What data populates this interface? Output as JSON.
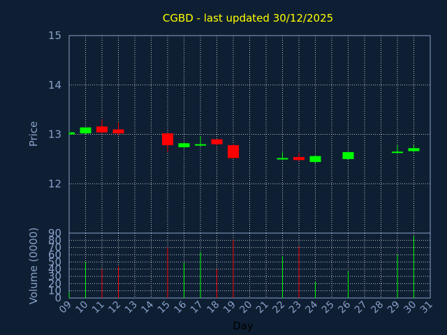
{
  "chart_data": {
    "type": "candlestick",
    "title": "CGBD - last updated 30/12/2025",
    "ylabel_price": "Price",
    "ylabel_volume": "Volume (0000)",
    "xlabel": "Day",
    "price_ylim": [
      11.0,
      15.0
    ],
    "price_ticks": [
      "12",
      "13",
      "14",
      "15"
    ],
    "price_tick_values": [
      12,
      13,
      14,
      15
    ],
    "volume_ylim": [
      0,
      90
    ],
    "volume_ticks": [
      "0",
      "10",
      "20",
      "30",
      "40",
      "50",
      "60",
      "70",
      "80",
      "90"
    ],
    "volume_tick_values": [
      0,
      10,
      20,
      30,
      40,
      50,
      60,
      70,
      80,
      90
    ],
    "x_ticks": [
      "09",
      "10",
      "11",
      "12",
      "13",
      "14",
      "15",
      "16",
      "17",
      "18",
      "19",
      "20",
      "21",
      "22",
      "23",
      "24",
      "25",
      "26",
      "27",
      "28",
      "29",
      "30",
      "31"
    ],
    "grid": true,
    "colors": {
      "up": "#00ff00",
      "down": "#ff0000",
      "grid": "#c0c0c0",
      "axis": "#8aa0c8",
      "title": "#ffff00",
      "background": "#0e1f33"
    },
    "candles": [
      {
        "day": "09",
        "open": 13.0,
        "high": 13.05,
        "low": 12.99,
        "close": 13.04,
        "volume": 8
      },
      {
        "day": "10",
        "open": 13.02,
        "high": 13.14,
        "low": 13.0,
        "close": 13.14,
        "volume": 50
      },
      {
        "day": "11",
        "open": 13.16,
        "high": 13.3,
        "low": 13.02,
        "close": 13.04,
        "volume": 40
      },
      {
        "day": "12",
        "open": 13.1,
        "high": 13.24,
        "low": 12.98,
        "close": 13.02,
        "volume": 44
      },
      {
        "day": "15",
        "open": 13.02,
        "high": 13.02,
        "low": 12.64,
        "close": 12.78,
        "volume": 70
      },
      {
        "day": "16",
        "open": 12.74,
        "high": 12.84,
        "low": 12.72,
        "close": 12.82,
        "volume": 49
      },
      {
        "day": "17",
        "open": 12.78,
        "high": 12.96,
        "low": 12.76,
        "close": 12.8,
        "volume": 64
      },
      {
        "day": "18",
        "open": 12.9,
        "high": 12.9,
        "low": 12.78,
        "close": 12.8,
        "volume": 40
      },
      {
        "day": "19",
        "open": 12.78,
        "high": 12.8,
        "low": 12.52,
        "close": 12.52,
        "volume": 81
      },
      {
        "day": "22",
        "open": 12.5,
        "high": 12.64,
        "low": 12.48,
        "close": 12.52,
        "volume": 58
      },
      {
        "day": "23",
        "open": 12.54,
        "high": 12.62,
        "low": 12.46,
        "close": 12.48,
        "volume": 72
      },
      {
        "day": "24",
        "open": 12.44,
        "high": 12.58,
        "low": 12.42,
        "close": 12.56,
        "volume": 23
      },
      {
        "day": "26",
        "open": 12.5,
        "high": 12.64,
        "low": 12.5,
        "close": 12.64,
        "volume": 37
      },
      {
        "day": "29",
        "open": 12.64,
        "high": 12.78,
        "low": 12.62,
        "close": 12.65,
        "volume": 60
      },
      {
        "day": "30",
        "open": 12.66,
        "high": 12.78,
        "low": 12.64,
        "close": 12.72,
        "volume": 86
      }
    ]
  }
}
